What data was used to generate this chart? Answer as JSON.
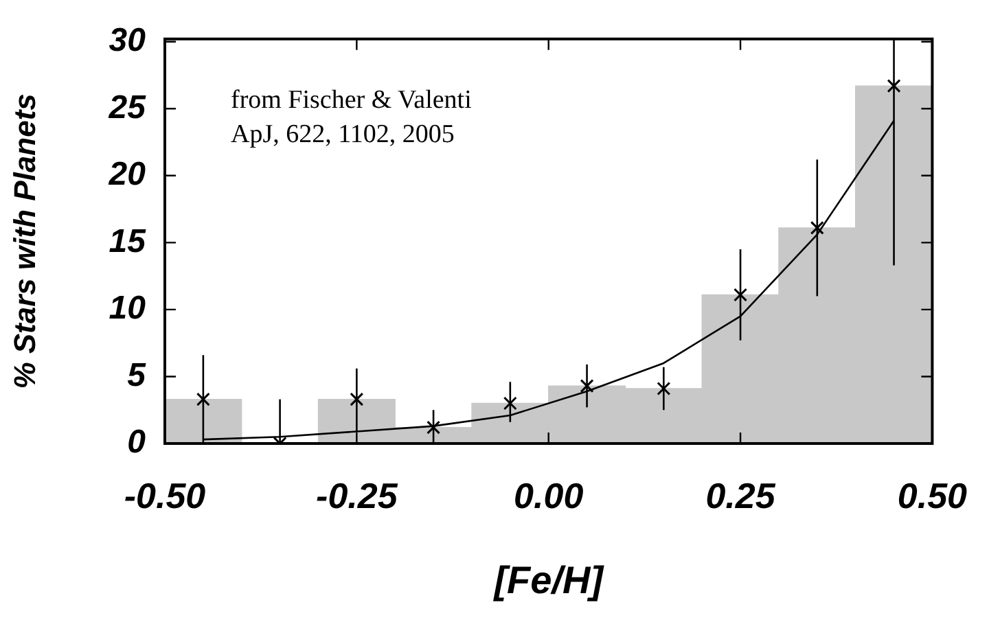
{
  "chart_data": {
    "type": "histogram",
    "xlabel": "[Fe/H]",
    "ylabel": "% Stars with Planets",
    "annotations": [
      "from Fischer & Valenti",
      "ApJ, 622, 1102, 2005"
    ],
    "xlim": [
      -0.5,
      0.5
    ],
    "xticks": [
      {
        "value": -0.5,
        "label": "-0.50"
      },
      -0.25,
      {
        "value": 0,
        "label": "0.00"
      },
      0.25,
      {
        "value": 0.5,
        "label": "0.50"
      }
    ],
    "ylim": [
      0,
      30.2
    ],
    "yticks": [
      0,
      5,
      10,
      15,
      20,
      25,
      30
    ],
    "grid": false,
    "color": "#c8c8c8",
    "bins": [
      -0.5,
      -0.4,
      -0.3,
      -0.2,
      -0.1,
      0,
      0.1,
      0.2,
      0.3,
      0.4,
      0.5
    ],
    "values": [
      3.3,
      0,
      3.3,
      1.2,
      3.0,
      4.3,
      4.1,
      11.1,
      16.1,
      26.7
    ],
    "series": [
      {
        "type": "scatter",
        "color": "#000000",
        "marker": "cross",
        "x": [
          -0.45,
          -0.35,
          -0.25,
          -0.15,
          -0.05,
          0.05,
          0.15,
          0.25,
          0.35,
          0.45
        ],
        "values": [
          3.3,
          0,
          3.3,
          1.2,
          3.0,
          4.3,
          4.1,
          11.1,
          16.1,
          26.7
        ],
        "errors": [
          [
            0,
            6.6
          ],
          [
            0,
            3.3
          ],
          [
            0.9,
            5.6
          ],
          [
            0,
            2.5
          ],
          [
            1.6,
            4.6
          ],
          [
            2.7,
            5.9
          ],
          [
            2.5,
            5.7
          ],
          [
            7.7,
            14.5
          ],
          [
            11.0,
            21.2
          ],
          [
            13.3,
            30.2
          ]
        ]
      },
      {
        "type": "line",
        "color": "#000000",
        "marker": "none",
        "x": [
          -0.45,
          -0.35,
          -0.25,
          -0.15,
          -0.05,
          0.05,
          0.15,
          0.25,
          0.35,
          0.45
        ],
        "values": [
          0.3,
          0.5,
          0.9,
          1.3,
          2.1,
          3.9,
          6.0,
          9.5,
          15.6,
          24.1
        ]
      }
    ]
  }
}
